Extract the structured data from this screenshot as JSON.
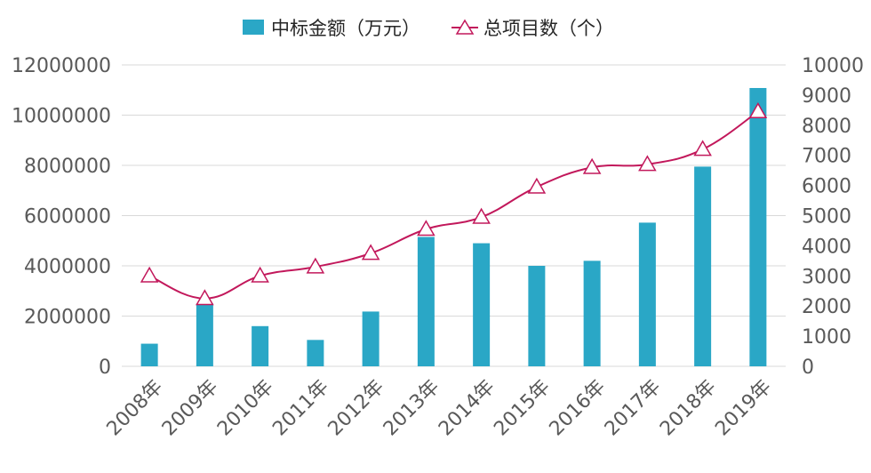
{
  "chart_data": {
    "type": "bar",
    "categories": [
      "2008年",
      "2009年",
      "2010年",
      "2011年",
      "2012年",
      "2013年",
      "2014年",
      "2015年",
      "2016年",
      "2017年",
      "2018年",
      "2019年"
    ],
    "series": [
      {
        "name": "中标金额（万元）",
        "type": "bar",
        "axis": "left",
        "color": "#2AA7C6",
        "values": [
          900000,
          2500000,
          1600000,
          1050000,
          2180000,
          5150000,
          4900000,
          4000000,
          4200000,
          5720000,
          7950000,
          11080000
        ]
      },
      {
        "name": "总项目数（个）",
        "type": "line",
        "axis": "right",
        "color": "#C2185B",
        "marker": "triangle-open",
        "values": [
          3000,
          2250,
          3000,
          3300,
          3750,
          4550,
          4950,
          5950,
          6600,
          6700,
          7200,
          8450
        ]
      }
    ],
    "y_left": {
      "min": 0,
      "max": 12000000,
      "ticks": [
        "0",
        "2000000",
        "4000000",
        "6000000",
        "8000000",
        "10000000",
        "12000000"
      ]
    },
    "y_right": {
      "min": 0,
      "max": 10000,
      "ticks": [
        "0",
        "1000",
        "2000",
        "3000",
        "4000",
        "5000",
        "6000",
        "7000",
        "8000",
        "9000",
        "10000"
      ]
    },
    "grid": true,
    "legend_position": "top-center",
    "title": "",
    "xlabel": "",
    "ylabel": ""
  }
}
